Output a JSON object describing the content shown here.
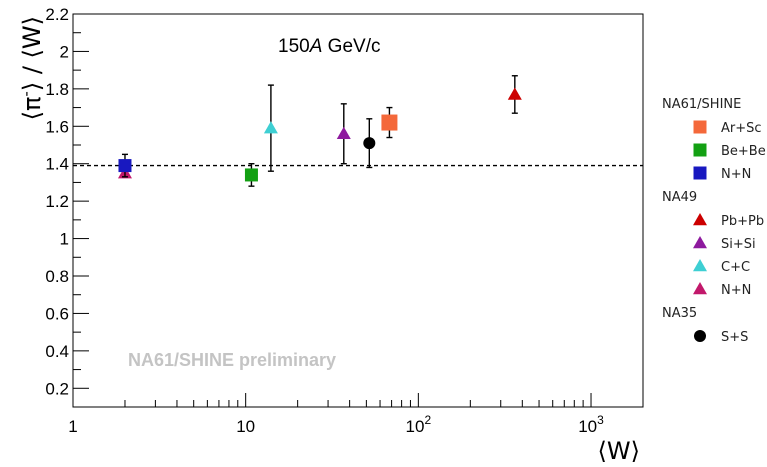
{
  "chart_data": {
    "type": "scatter",
    "annotation": "150A GeV/c",
    "annotation_parts": {
      "pre": "150",
      "italic": "A",
      "post": " GeV/c"
    },
    "watermark": "NA61/SHINE preliminary",
    "xlabel": "⟨W⟩",
    "ylabel_parts": {
      "open": "⟨π",
      "sup": "-",
      "rest": "⟩ / ⟨W⟩"
    },
    "x_scale": "log",
    "xlim": [
      1,
      2000
    ],
    "ylim": [
      0.1,
      2.2
    ],
    "x_ticks": [
      {
        "value": 1,
        "base": "1",
        "exp": ""
      },
      {
        "value": 10,
        "base": "10",
        "exp": ""
      },
      {
        "value": 100,
        "base": "10",
        "exp": "2"
      },
      {
        "value": 1000,
        "base": "10",
        "exp": "3"
      }
    ],
    "y_ticks": [
      {
        "value": 0.2,
        "label": "0.2"
      },
      {
        "value": 0.4,
        "label": "0.4"
      },
      {
        "value": 0.6,
        "label": "0.6"
      },
      {
        "value": 0.8,
        "label": "0.8"
      },
      {
        "value": 1.0,
        "label": "1"
      },
      {
        "value": 1.2,
        "label": "1.2"
      },
      {
        "value": 1.4,
        "label": "1.4"
      },
      {
        "value": 1.6,
        "label": "1.6"
      },
      {
        "value": 1.8,
        "label": "1.8"
      },
      {
        "value": 2.0,
        "label": "2"
      },
      {
        "value": 2.2,
        "label": "2.2"
      }
    ],
    "reference_line": {
      "y": 1.39,
      "style": "dashed"
    },
    "series": [
      {
        "name": "Ar+Sc",
        "group": "NA61/SHINE",
        "marker": "square",
        "size": "large",
        "color": "#F4683A",
        "points": [
          {
            "x": 68,
            "y": 1.62,
            "err": 0.08
          }
        ]
      },
      {
        "name": "Be+Be",
        "group": "NA61/SHINE",
        "marker": "square",
        "size": "medium",
        "color": "#13A013",
        "points": [
          {
            "x": 10.8,
            "y": 1.34,
            "err": 0.06
          }
        ]
      },
      {
        "name": "N+N",
        "group": "NA61/SHINE",
        "marker": "square",
        "size": "medium",
        "color": "#1818C0",
        "points": [
          {
            "x": 2.0,
            "y": 1.39,
            "err": 0.06
          }
        ]
      },
      {
        "name": "Pb+Pb",
        "group": "NA49",
        "marker": "triangle",
        "color": "#CC0000",
        "points": [
          {
            "x": 362,
            "y": 1.77,
            "err": 0.1
          }
        ]
      },
      {
        "name": "Si+Si",
        "group": "NA49",
        "marker": "triangle",
        "color": "#8E1A9E",
        "points": [
          {
            "x": 37,
            "y": 1.56,
            "err": 0.16
          }
        ]
      },
      {
        "name": "C+C",
        "group": "NA49",
        "marker": "triangle",
        "color": "#3ECFD3",
        "points": [
          {
            "x": 14,
            "y": 1.59,
            "err": 0.23
          }
        ]
      },
      {
        "name": "N+N",
        "group": "NA49",
        "marker": "triangle",
        "color": "#C2186B",
        "points": [
          {
            "x": 2.0,
            "y": 1.35,
            "err": 0.0
          }
        ]
      },
      {
        "name": "S+S",
        "group": "NA35",
        "marker": "circle",
        "color": "#000000",
        "points": [
          {
            "x": 52,
            "y": 1.51,
            "err": 0.13
          }
        ]
      }
    ],
    "legend": {
      "placement": "right",
      "groups": [
        {
          "title": "NA61/SHINE",
          "entries": [
            {
              "label": "Ar+Sc",
              "marker": "square",
              "color": "#F4683A"
            },
            {
              "label": "Be+Be",
              "marker": "square",
              "color": "#13A013"
            },
            {
              "label": "N+N",
              "marker": "square",
              "color": "#1818C0"
            }
          ]
        },
        {
          "title": "NA49",
          "entries": [
            {
              "label": "Pb+Pb",
              "marker": "triangle",
              "color": "#CC0000"
            },
            {
              "label": "Si+Si",
              "marker": "triangle",
              "color": "#8E1A9E"
            },
            {
              "label": "C+C",
              "marker": "triangle",
              "color": "#3ECFD3"
            },
            {
              "label": "N+N",
              "marker": "triangle",
              "color": "#C2186B"
            }
          ]
        },
        {
          "title": "NA35",
          "entries": [
            {
              "label": "S+S",
              "marker": "circle",
              "color": "#000000"
            }
          ]
        }
      ]
    }
  }
}
